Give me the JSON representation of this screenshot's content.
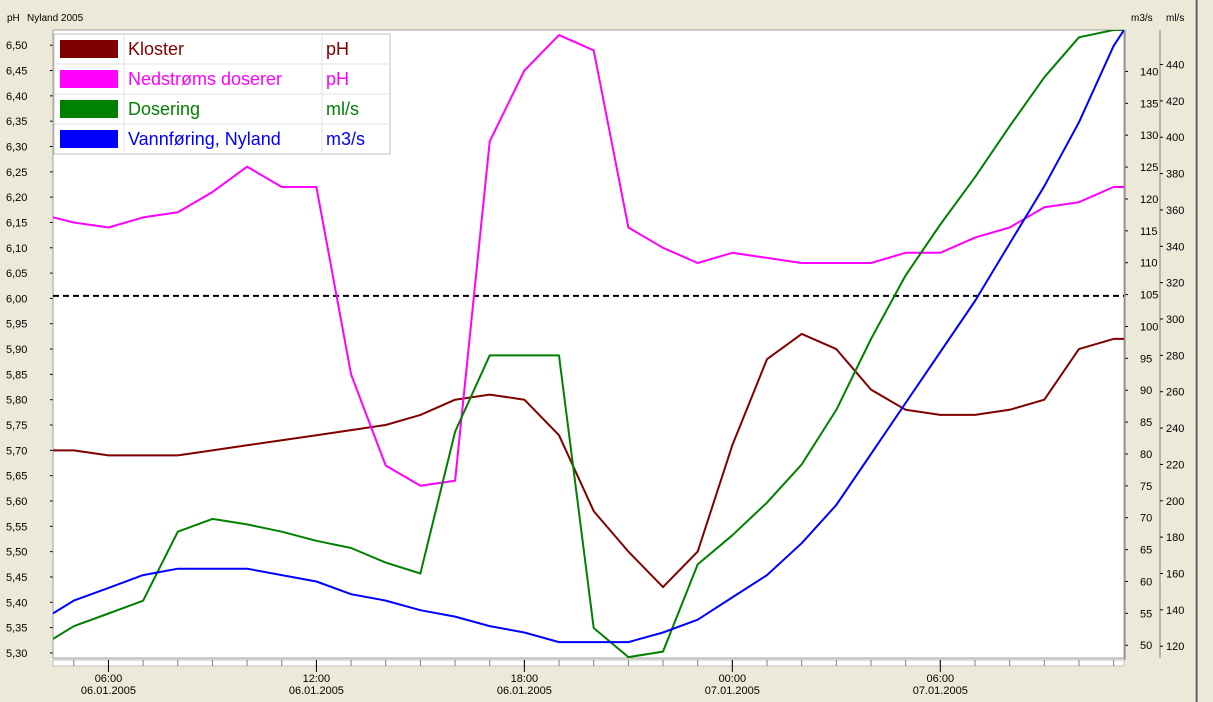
{
  "header": {
    "left_unit": "pH",
    "title": "Nyland 2005",
    "right_unit_1": "m3/s",
    "right_unit_2": "ml/s"
  },
  "chart_data": {
    "type": "line",
    "title": "Nyland 2005",
    "grid": false,
    "legend_position": "top-left",
    "x_ticks": [
      {
        "time": "06:00",
        "date": "06.01.2005",
        "x": 6
      },
      {
        "time": "12:00",
        "date": "06.01.2005",
        "x": 12
      },
      {
        "time": "18:00",
        "date": "06.01.2005",
        "x": 18
      },
      {
        "time": "00:00",
        "date": "07.01.2005",
        "x": 24
      },
      {
        "time": "06:00",
        "date": "07.01.2005",
        "x": 30
      }
    ],
    "x_range_hours": [
      4.4,
      35.3
    ],
    "axes": {
      "left": {
        "label": "pH",
        "range": [
          5.29,
          6.53
        ],
        "ticks": [
          "6,50",
          "6,45",
          "6,40",
          "6,35",
          "6,30",
          "6,25",
          "6,20",
          "6,15",
          "6,10",
          "6,05",
          "6,00",
          "5,95",
          "5,90",
          "5,85",
          "5,80",
          "5,75",
          "5,70",
          "5,65",
          "5,60",
          "5,55",
          "5,50",
          "5,45",
          "5,40",
          "5,35",
          "5,30"
        ]
      },
      "right1": {
        "label": "m3/s",
        "range": [
          48,
          146.5
        ],
        "ticks": [
          "140",
          "135",
          "130",
          "125",
          "120",
          "115",
          "110",
          "105",
          "100",
          "95",
          "90",
          "85",
          "80",
          "75",
          "70",
          "65",
          "60",
          "55",
          "50"
        ]
      },
      "right2": {
        "label": "ml/s",
        "range": [
          113.5,
          459
        ],
        "ticks": [
          "440",
          "420",
          "400",
          "380",
          "360",
          "340",
          "320",
          "300",
          "280",
          "260",
          "240",
          "220",
          "200",
          "180",
          "160",
          "140",
          "120"
        ]
      }
    },
    "reference_line": {
      "axis": "left",
      "value": 6.005,
      "style": "dashed"
    },
    "series": [
      {
        "name": "Kloster",
        "unit": "pH",
        "axis": "left",
        "color": "#800000",
        "x": [
          4.4,
          5,
          6,
          7,
          8,
          9,
          10,
          11,
          12,
          13,
          14,
          15,
          16,
          17,
          18,
          19,
          20,
          21,
          22,
          23,
          24,
          25,
          26,
          27,
          28,
          29,
          30,
          31,
          32,
          33,
          34,
          35,
          35.3
        ],
        "y": [
          5.7,
          5.7,
          5.69,
          5.69,
          5.69,
          5.7,
          5.71,
          5.72,
          5.73,
          5.74,
          5.75,
          5.77,
          5.8,
          5.81,
          5.8,
          5.73,
          5.58,
          5.5,
          5.43,
          5.5,
          5.71,
          5.88,
          5.93,
          5.9,
          5.82,
          5.78,
          5.77,
          5.77,
          5.78,
          5.8,
          5.9,
          5.92,
          5.92
        ]
      },
      {
        "name": "Nedstrøms doserer",
        "unit": "pH",
        "axis": "left",
        "color": "#ff00ff",
        "x": [
          4.4,
          5,
          6,
          7,
          8,
          9,
          10,
          11,
          12,
          13,
          14,
          15,
          16,
          17,
          18,
          19,
          20,
          21,
          22,
          23,
          24,
          25,
          26,
          27,
          28,
          29,
          30,
          31,
          32,
          33,
          34,
          35,
          35.3
        ],
        "y": [
          6.16,
          6.15,
          6.14,
          6.16,
          6.17,
          6.21,
          6.26,
          6.22,
          6.22,
          5.85,
          5.67,
          5.63,
          5.64,
          6.31,
          6.45,
          6.52,
          6.49,
          6.14,
          6.1,
          6.07,
          6.09,
          6.08,
          6.07,
          6.07,
          6.07,
          6.09,
          6.09,
          6.12,
          6.14,
          6.18,
          6.19,
          6.22,
          6.22
        ]
      },
      {
        "name": "Dosering",
        "unit": "ml/s",
        "axis": "right2",
        "color": "#008000",
        "x": [
          4.4,
          5,
          6,
          7,
          8,
          9,
          10,
          11,
          12,
          13,
          14,
          15,
          16,
          17,
          18,
          19,
          20,
          21,
          22,
          23,
          24,
          25,
          26,
          27,
          28,
          29,
          30,
          31,
          32,
          33,
          34,
          35,
          35.3
        ],
        "y": [
          124,
          131,
          138,
          145,
          183,
          190,
          187,
          183,
          178,
          174,
          166,
          160,
          238,
          280,
          280,
          280,
          130,
          114,
          117,
          165,
          181,
          199,
          220,
          250,
          289,
          324,
          352,
          378,
          406,
          433,
          455,
          459,
          459
        ]
      },
      {
        "name": "Vannføring, Nyland",
        "unit": "m3/s",
        "axis": "right1",
        "color": "#0000ff",
        "x": [
          4.4,
          5,
          6,
          7,
          8,
          9,
          10,
          11,
          12,
          13,
          14,
          15,
          16,
          17,
          18,
          19,
          20,
          21,
          22,
          23,
          24,
          25,
          26,
          27,
          28,
          29,
          30,
          31,
          32,
          33,
          34,
          35,
          35.3
        ],
        "y": [
          55,
          57,
          59,
          61,
          62,
          62,
          62,
          61,
          60,
          58,
          57,
          55.5,
          54.5,
          53,
          52,
          50.5,
          50.5,
          50.5,
          52,
          54,
          57.5,
          61,
          66,
          72,
          80,
          88,
          96,
          104,
          113,
          122,
          132,
          144,
          146.5
        ]
      }
    ]
  }
}
